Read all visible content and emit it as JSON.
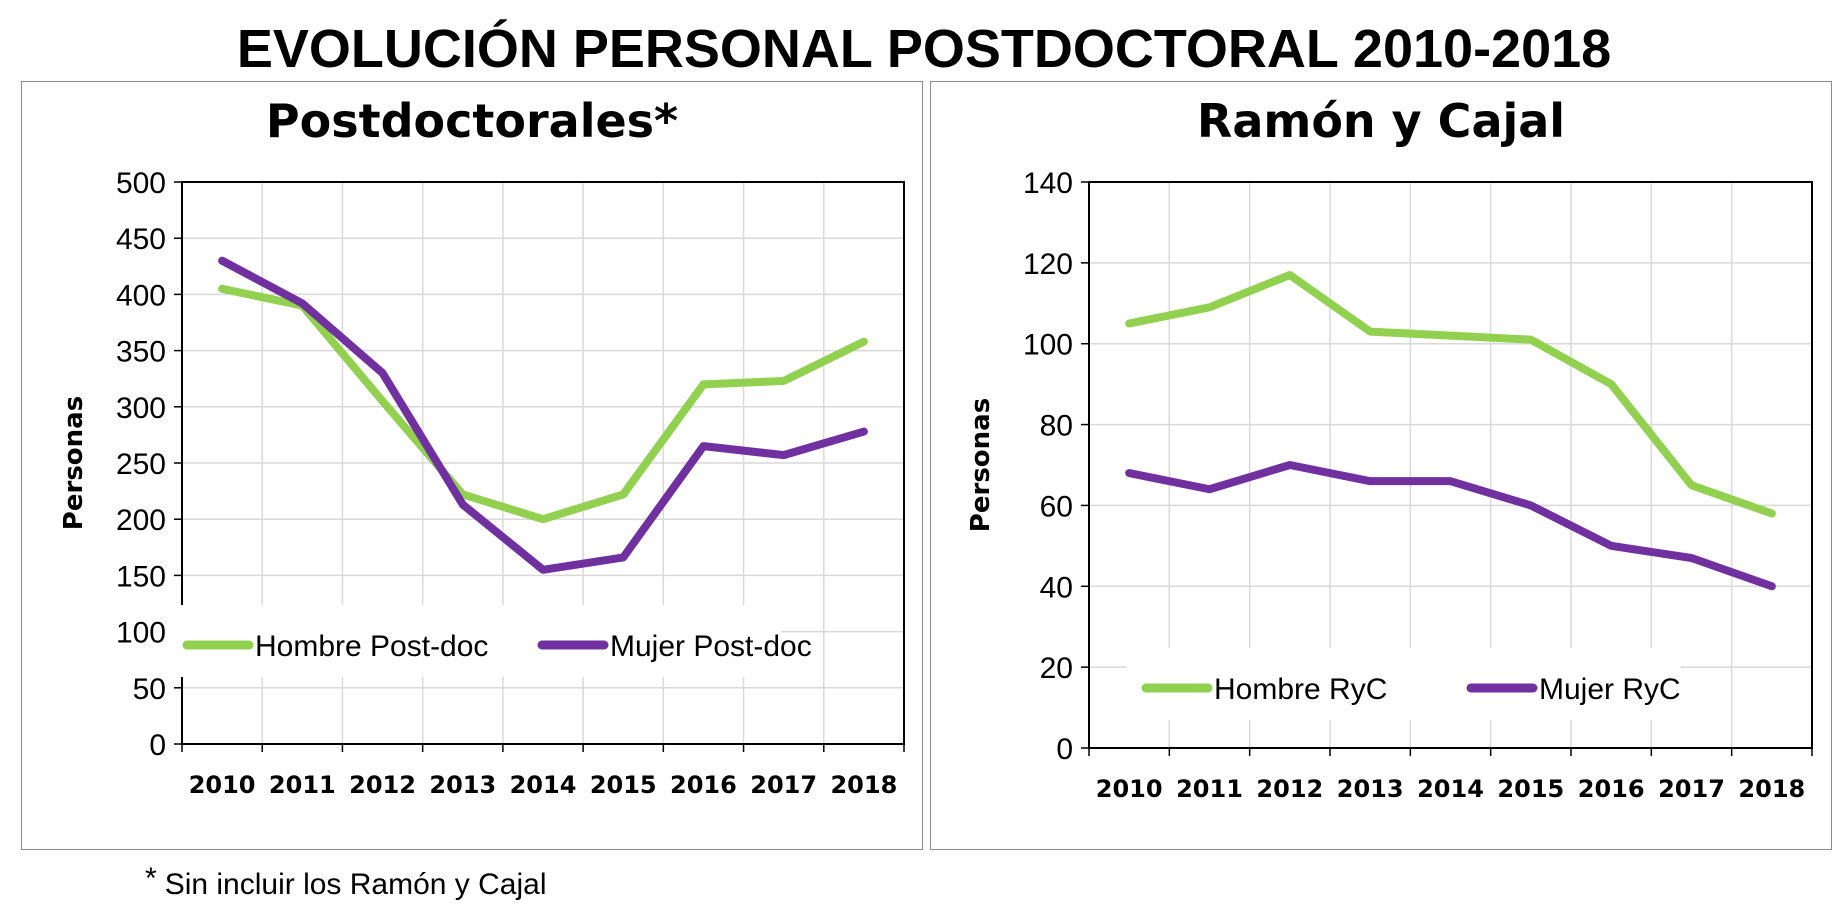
{
  "title": "EVOLUCIÓN PERSONAL POSTDOCTORAL 2010-2018",
  "footnote": {
    "star": "*",
    "text": "Sin incluir los Ramón y Cajal"
  },
  "colors": {
    "hombre": "#92d050",
    "mujer": "#7030a0",
    "grid": "#d9d9d9"
  },
  "chart_data": [
    {
      "type": "line",
      "title": "Postdoctorales*",
      "xlabel": "",
      "ylabel": "Personas",
      "categories": [
        "2010",
        "2011",
        "2012",
        "2013",
        "2014",
        "2015",
        "2016",
        "2017",
        "2018"
      ],
      "ylim": [
        0,
        500
      ],
      "yticks": [
        0,
        50,
        100,
        150,
        200,
        250,
        300,
        350,
        400,
        450,
        500
      ],
      "grid": true,
      "legend": "bottom-inside",
      "series": [
        {
          "name": "Hombre Post-doc",
          "color": "#92d050",
          "values": [
            405,
            390,
            305,
            222,
            200,
            222,
            320,
            323,
            358
          ]
        },
        {
          "name": "Mujer Post-doc",
          "color": "#7030a0",
          "values": [
            430,
            392,
            330,
            213,
            155,
            166,
            265,
            257,
            278
          ]
        }
      ]
    },
    {
      "type": "line",
      "title": "Ramón y Cajal",
      "xlabel": "",
      "ylabel": "Personas",
      "categories": [
        "2010",
        "2011",
        "2012",
        "2013",
        "2014",
        "2015",
        "2016",
        "2017",
        "2018"
      ],
      "ylim": [
        0,
        140
      ],
      "yticks": [
        0,
        20,
        40,
        60,
        80,
        100,
        120,
        140
      ],
      "grid": true,
      "legend": "bottom-inside",
      "series": [
        {
          "name": "Hombre  RyC",
          "color": "#92d050",
          "values": [
            105,
            109,
            117,
            103,
            102,
            101,
            90,
            65,
            58
          ]
        },
        {
          "name": "Mujer RyC",
          "color": "#7030a0",
          "values": [
            68,
            64,
            70,
            66,
            66,
            60,
            50,
            47,
            40
          ]
        }
      ]
    }
  ]
}
